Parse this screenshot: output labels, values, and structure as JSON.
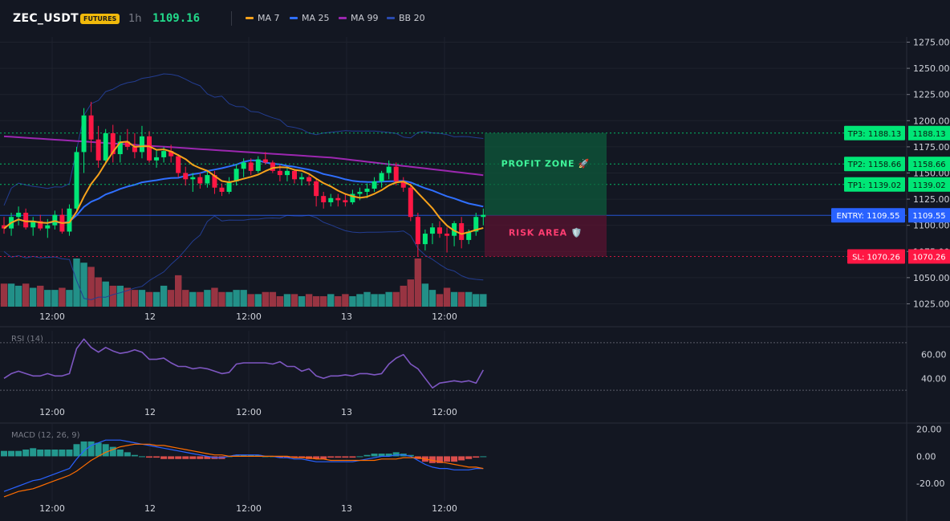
{
  "header": {
    "symbol": "ZEC_USDT",
    "badge": "FUTURES",
    "timeframe": "1h",
    "last_price": "1109.16",
    "indicators": [
      {
        "label": "MA 7",
        "color": "#f7a21b"
      },
      {
        "label": "MA 25",
        "color": "#2f6fff"
      },
      {
        "label": "MA 99",
        "color": "#9c27b0"
      },
      {
        "label": "BB 20",
        "color": "#2a4bb0"
      }
    ]
  },
  "colors": {
    "up": "#26a69a",
    "up_bright": "#00e676",
    "down": "#ff1744",
    "vol_up": "#26a69a",
    "vol_down": "#b03a48",
    "ma7": "#f7a21b",
    "ma25": "#2f6fff",
    "ma99": "#9c27b0",
    "bb": "#233d91",
    "rsi": "#7e57c2",
    "macd": "#2962ff",
    "signal": "#ff6d00",
    "tp": "#00e676",
    "entry": "#2962ff",
    "sl": "#ff1744"
  },
  "price_axis": {
    "labels": [
      "1275.00",
      "1250.00",
      "1225.00",
      "1200.00",
      "1175.00",
      "1150.00",
      "1125.00",
      "1100.00",
      "1075.00",
      "1050.00",
      "1025.00"
    ],
    "values": [
      1275,
      1250,
      1225,
      1200,
      1175,
      1150,
      1125,
      1100,
      1075,
      1050,
      1025
    ]
  },
  "time_axis": [
    "12:00",
    "12",
    "12:00",
    "13",
    "12:00"
  ],
  "levels": [
    {
      "name": "TP3",
      "label": "TP3: 1188.13",
      "value": 1188.13,
      "axis_label": "1188.13",
      "kind": "tp"
    },
    {
      "name": "TP2",
      "label": "TP2: 1158.66",
      "value": 1158.66,
      "axis_label": "1158.66",
      "kind": "tp"
    },
    {
      "name": "TP1",
      "label": "TP1: 1139.02",
      "value": 1139.02,
      "axis_label": "1139.02",
      "kind": "tp"
    },
    {
      "name": "ENTRY",
      "label": "ENTRY: 1109.55",
      "value": 1109.55,
      "axis_label": "1109.55",
      "kind": "entry"
    },
    {
      "name": "SL",
      "label": "SL: 1070.26",
      "value": 1070.26,
      "axis_label": "1070.26",
      "kind": "sl"
    }
  ],
  "zones": {
    "profit": "PROFIT ZONE 🚀",
    "risk": "RISK AREA 🛡️"
  },
  "rsi": {
    "label": "RSI (14)",
    "axis": [
      "60.00",
      "40.00"
    ],
    "axis_values": [
      60,
      40
    ],
    "upper": 70,
    "lower": 30
  },
  "macd": {
    "label": "MACD (12, 26, 9)",
    "axis": [
      "20.00",
      "0.00",
      "-20.00"
    ],
    "axis_values": [
      20,
      0,
      -20
    ]
  },
  "chart_data": {
    "type": "candlestick",
    "interval": "1h",
    "candles": [
      [
        1100,
        1108,
        1092,
        1097
      ],
      [
        1097,
        1112,
        1090,
        1108
      ],
      [
        1108,
        1118,
        1100,
        1112
      ],
      [
        1112,
        1116,
        1096,
        1098
      ],
      [
        1098,
        1108,
        1090,
        1104
      ],
      [
        1104,
        1110,
        1095,
        1097
      ],
      [
        1097,
        1106,
        1088,
        1100
      ],
      [
        1100,
        1114,
        1096,
        1110
      ],
      [
        1110,
        1116,
        1092,
        1094
      ],
      [
        1094,
        1120,
        1090,
        1116
      ],
      [
        1116,
        1175,
        1112,
        1170
      ],
      [
        1170,
        1212,
        1150,
        1205
      ],
      [
        1205,
        1218,
        1170,
        1182
      ],
      [
        1182,
        1195,
        1155,
        1162
      ],
      [
        1162,
        1192,
        1158,
        1188
      ],
      [
        1188,
        1196,
        1160,
        1168
      ],
      [
        1168,
        1186,
        1160,
        1180
      ],
      [
        1180,
        1192,
        1172,
        1175
      ],
      [
        1175,
        1188,
        1164,
        1170
      ],
      [
        1170,
        1195,
        1164,
        1185
      ],
      [
        1185,
        1190,
        1160,
        1162
      ],
      [
        1162,
        1172,
        1155,
        1165
      ],
      [
        1165,
        1175,
        1160,
        1171
      ],
      [
        1171,
        1177,
        1160,
        1166
      ],
      [
        1166,
        1168,
        1146,
        1150
      ],
      [
        1150,
        1156,
        1138,
        1144
      ],
      [
        1144,
        1150,
        1132,
        1146
      ],
      [
        1146,
        1150,
        1135,
        1140
      ],
      [
        1140,
        1152,
        1136,
        1148
      ],
      [
        1148,
        1152,
        1130,
        1136
      ],
      [
        1136,
        1140,
        1128,
        1132
      ],
      [
        1132,
        1146,
        1130,
        1142
      ],
      [
        1142,
        1158,
        1138,
        1154
      ],
      [
        1154,
        1164,
        1146,
        1160
      ],
      [
        1160,
        1164,
        1148,
        1152
      ],
      [
        1152,
        1166,
        1150,
        1163
      ],
      [
        1163,
        1170,
        1158,
        1160
      ],
      [
        1160,
        1162,
        1150,
        1152
      ],
      [
        1152,
        1158,
        1142,
        1148
      ],
      [
        1148,
        1156,
        1142,
        1152
      ],
      [
        1152,
        1154,
        1140,
        1144
      ],
      [
        1144,
        1150,
        1138,
        1146
      ],
      [
        1146,
        1148,
        1138,
        1142
      ],
      [
        1142,
        1144,
        1118,
        1128
      ],
      [
        1128,
        1132,
        1116,
        1122
      ],
      [
        1122,
        1130,
        1118,
        1126
      ],
      [
        1126,
        1130,
        1118,
        1124
      ],
      [
        1124,
        1130,
        1118,
        1122
      ],
      [
        1122,
        1134,
        1120,
        1130
      ],
      [
        1130,
        1136,
        1124,
        1132
      ],
      [
        1132,
        1140,
        1126,
        1135
      ],
      [
        1135,
        1146,
        1132,
        1142
      ],
      [
        1142,
        1152,
        1136,
        1150
      ],
      [
        1150,
        1162,
        1144,
        1156
      ],
      [
        1156,
        1160,
        1138,
        1142
      ],
      [
        1142,
        1146,
        1132,
        1136
      ],
      [
        1136,
        1140,
        1104,
        1108
      ],
      [
        1108,
        1112,
        1070,
        1082
      ],
      [
        1082,
        1096,
        1076,
        1092
      ],
      [
        1092,
        1102,
        1082,
        1098
      ],
      [
        1098,
        1104,
        1088,
        1092
      ],
      [
        1092,
        1098,
        1074,
        1090
      ],
      [
        1090,
        1104,
        1080,
        1102
      ],
      [
        1102,
        1108,
        1078,
        1086
      ],
      [
        1086,
        1096,
        1082,
        1094
      ],
      [
        1094,
        1112,
        1090,
        1108
      ],
      [
        1108,
        1116,
        1100,
        1110
      ]
    ],
    "volume": [
      22,
      22,
      20,
      22,
      18,
      20,
      16,
      16,
      18,
      16,
      46,
      42,
      38,
      28,
      24,
      20,
      20,
      18,
      16,
      16,
      14,
      14,
      20,
      16,
      30,
      16,
      14,
      14,
      16,
      18,
      14,
      14,
      16,
      16,
      12,
      12,
      14,
      14,
      10,
      12,
      12,
      10,
      12,
      10,
      10,
      12,
      10,
      12,
      10,
      12,
      14,
      12,
      12,
      14,
      14,
      20,
      26,
      46,
      22,
      16,
      12,
      18,
      14,
      14,
      14,
      12,
      12
    ],
    "rsi": [
      40,
      44,
      46,
      44,
      42,
      42,
      44,
      42,
      42,
      44,
      65,
      73,
      66,
      62,
      66,
      63,
      61,
      62,
      64,
      62,
      56,
      56,
      57,
      53,
      50,
      50,
      48,
      49,
      48,
      46,
      44,
      45,
      52,
      53,
      53,
      53,
      53,
      52,
      54,
      50,
      50,
      46,
      48,
      42,
      40,
      42,
      42,
      43,
      42,
      44,
      44,
      43,
      44,
      52,
      57,
      60,
      52,
      48,
      40,
      32,
      36,
      37,
      38,
      37,
      38,
      36,
      47
    ],
    "macd": [
      -26,
      -24,
      -22,
      -20,
      -18,
      -17,
      -15,
      -13,
      -11,
      -9,
      -2,
      4,
      8,
      10,
      12,
      12,
      12,
      11,
      10,
      9,
      8,
      7,
      6,
      5,
      4,
      3,
      2,
      1,
      0,
      -1,
      -1,
      0,
      1,
      1,
      1,
      1,
      0,
      0,
      -1,
      -1,
      -2,
      -2,
      -3,
      -4,
      -4,
      -4,
      -4,
      -4,
      -4,
      -3,
      -2,
      -1,
      0,
      0,
      1,
      1,
      0,
      -3,
      -6,
      -8,
      -9,
      -9,
      -10,
      -10,
      -10,
      -9,
      -9
    ],
    "signal": [
      -30,
      -28,
      -26,
      -25,
      -24,
      -22,
      -20,
      -18,
      -16,
      -14,
      -11,
      -7,
      -3,
      0,
      3,
      5,
      7,
      8,
      9,
      9,
      9,
      8,
      8,
      7,
      6,
      5,
      4,
      3,
      2,
      1,
      1,
      0,
      0,
      0,
      0,
      0,
      0,
      0,
      0,
      0,
      -1,
      -1,
      -1,
      -2,
      -2,
      -3,
      -3,
      -3,
      -3,
      -3,
      -3,
      -3,
      -2,
      -2,
      -2,
      -1,
      -1,
      -1,
      -2,
      -3,
      -4,
      -5,
      -6,
      -7,
      -8,
      -8,
      -9
    ],
    "price_range": [
      1010,
      1280
    ],
    "rsi_range": [
      22,
      80
    ],
    "macd_range": [
      -33,
      24
    ]
  }
}
